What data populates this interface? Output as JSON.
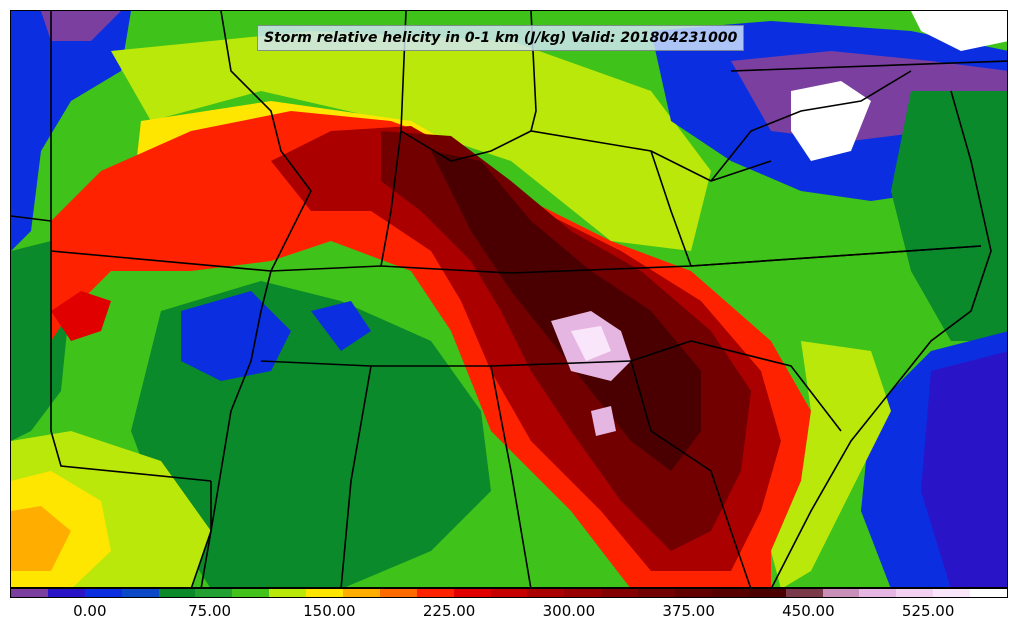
{
  "title": "Storm relative helicity in 0-1 km (J/kg) Valid: 201804231000",
  "colorbar": {
    "colors": [
      "#7b3fa0",
      "#2a14c8",
      "#0a2ee0",
      "#0b48c8",
      "#0a8a2a",
      "#22a032",
      "#44c21c",
      "#b9e80a",
      "#ffe600",
      "#ffae00",
      "#ff6a00",
      "#ff2200",
      "#e00000",
      "#c40000",
      "#aa0000",
      "#980000",
      "#840000",
      "#720000",
      "#620000",
      "#560000",
      "#4a0000",
      "#7a3a4a",
      "#c890b8",
      "#e6b6e2",
      "#f2d2f0",
      "#fae6fa",
      "#ffffff"
    ],
    "ticks": [
      "0.00",
      "75.00",
      "150.00",
      "225.00",
      "300.00",
      "375.00",
      "450.00",
      "525.00"
    ],
    "tick_values": [
      0,
      75,
      150,
      225,
      300,
      375,
      450,
      525
    ],
    "range": [
      -50,
      575
    ]
  },
  "map": {
    "field": "storm-relative-helicity-0-1km",
    "units": "J/kg",
    "valid_time": "201804231000"
  }
}
